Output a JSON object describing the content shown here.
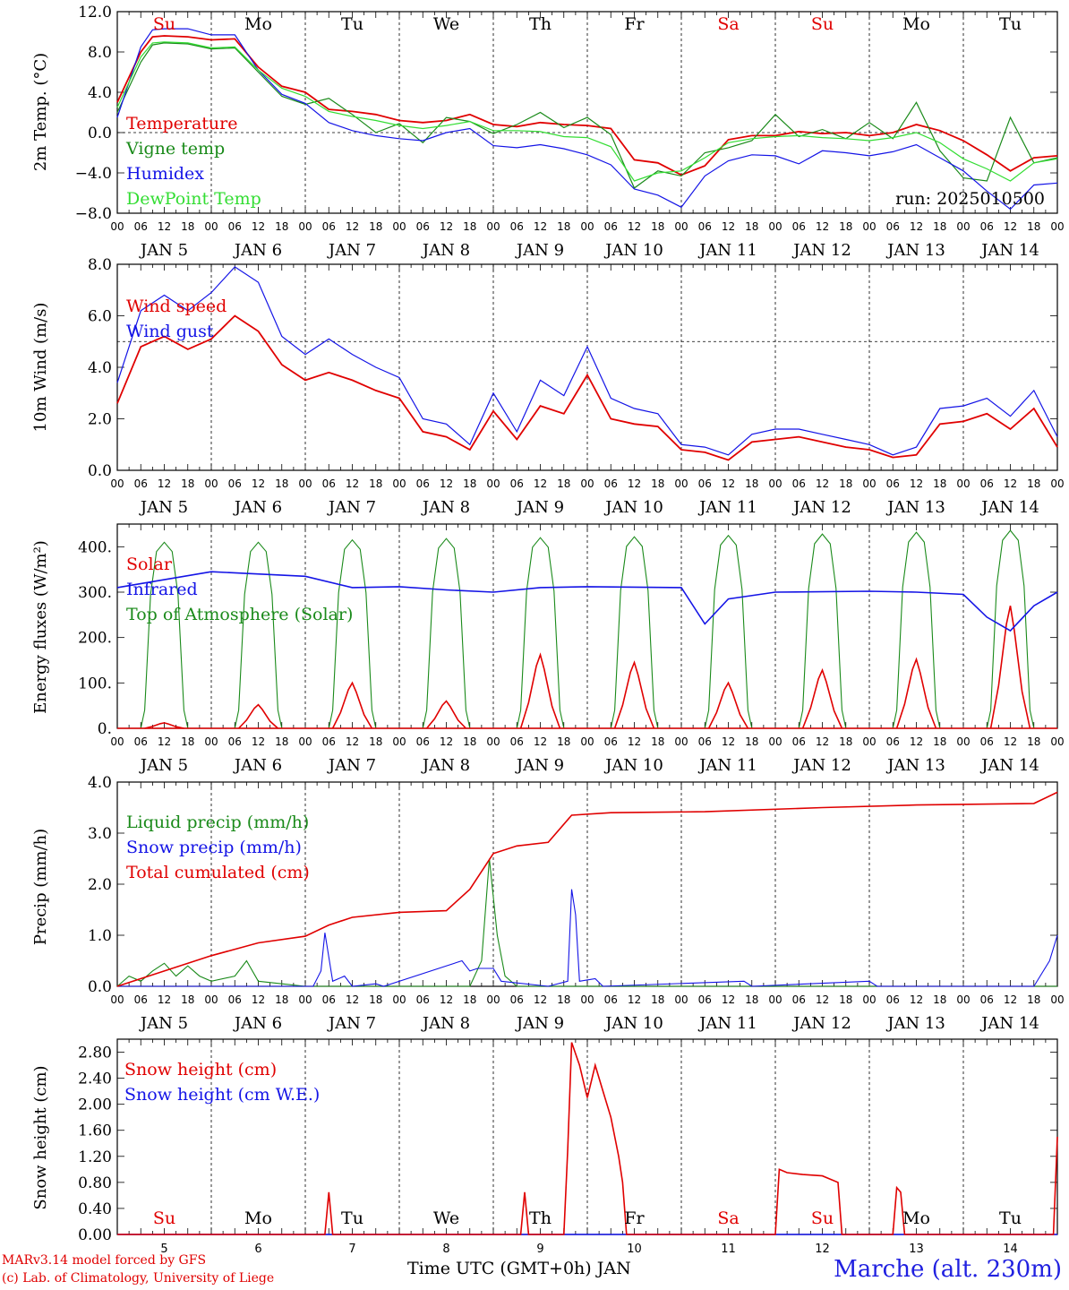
{
  "day_names": [
    "Su",
    "Mo",
    "Tu",
    "We",
    "Th",
    "Fr",
    "Sa",
    "Su",
    "Mo",
    "Tu"
  ],
  "weekend_color": "#e00000",
  "weekday_color": "#000000",
  "hour_ticks": [
    "00",
    "06",
    "12",
    "18"
  ],
  "final_hour_tick": "00",
  "date_labels": [
    "JAN  5",
    "JAN  6",
    "JAN  7",
    "JAN  8",
    "JAN  9",
    "JAN 10",
    "JAN 11",
    "JAN 12",
    "JAN 13",
    "JAN 14"
  ],
  "bottom_day_numbers": [
    "5",
    "6",
    "7",
    "8",
    "9",
    "10",
    "11",
    "12",
    "13",
    "14"
  ],
  "footer": {
    "credit_line1": "MARv3.14 model forced by GFS",
    "credit_line2": "(c) Lab. of Climatology, University of Liege",
    "x_axis_label": "Time UTC (GMT+0h) JAN",
    "station": "Marche (alt. 230m)"
  },
  "colors": {
    "red": "#e00000",
    "green": "#1a8a1a",
    "blue": "#1414e6",
    "lightgreen": "#33dd33"
  },
  "chart_data": [
    {
      "type": "line",
      "ylabel": "2m Temp. (°C)",
      "ylim": [
        -8,
        12
      ],
      "yticks": [
        "12.0",
        "8.0",
        "4.0",
        "0.0",
        "−4.0",
        "−8.0"
      ],
      "ytick_values": [
        12,
        8,
        4,
        0,
        -4,
        -8
      ],
      "ref_line": 0,
      "annotation": "run: 2025010500",
      "x_hours": [
        0,
        6,
        9,
        12,
        18,
        24,
        30,
        36,
        42,
        48,
        54,
        60,
        66,
        72,
        78,
        84,
        90,
        96,
        102,
        108,
        114,
        120,
        126,
        132,
        138,
        144,
        150,
        156,
        162,
        168,
        174,
        180,
        186,
        192,
        198,
        204,
        210,
        216,
        222,
        228,
        234,
        240
      ],
      "series": [
        {
          "name": "Temperature",
          "color": "red",
          "values": [
            3.0,
            8.0,
            9.5,
            9.6,
            9.5,
            9.2,
            9.3,
            6.5,
            4.6,
            4.0,
            2.3,
            2.1,
            1.8,
            1.2,
            1.0,
            1.2,
            1.8,
            0.8,
            0.6,
            1.0,
            0.8,
            0.7,
            0.4,
            -2.7,
            -3.0,
            -4.2,
            -3.3,
            -0.7,
            -0.3,
            -0.3,
            0.1,
            -0.1,
            0.0,
            -0.3,
            0.0,
            0.8,
            0.2,
            -0.8,
            -2.2,
            -3.8,
            -2.5,
            -2.3
          ]
        },
        {
          "name": "Vigne temp",
          "color": "green",
          "values": [
            2.0,
            7.0,
            8.7,
            8.9,
            8.8,
            8.3,
            8.4,
            6.0,
            3.6,
            2.8,
            3.4,
            1.8,
            0.0,
            0.9,
            -1.0,
            1.5,
            1.1,
            -0.1,
            0.8,
            2.0,
            0.5,
            1.5,
            -0.2,
            -5.5,
            -3.8,
            -4.3,
            -2.0,
            -1.5,
            -0.8,
            1.8,
            -0.4,
            0.3,
            -0.6,
            1.0,
            -0.6,
            3.0,
            -1.8,
            -4.5,
            -4.8,
            1.5,
            -3.0,
            -2.5
          ]
        },
        {
          "name": "Humidex",
          "color": "blue",
          "values": [
            1.5,
            8.5,
            10.2,
            10.3,
            10.3,
            9.7,
            9.7,
            6.2,
            3.8,
            2.9,
            1.0,
            0.2,
            -0.3,
            -0.6,
            -0.8,
            0.0,
            0.4,
            -1.3,
            -1.5,
            -1.2,
            -1.6,
            -2.2,
            -3.2,
            -5.6,
            -6.2,
            -7.4,
            -4.3,
            -2.8,
            -2.2,
            -2.3,
            -3.1,
            -1.8,
            -2.0,
            -2.3,
            -1.9,
            -1.2,
            -2.5,
            -3.8,
            -5.8,
            -7.6,
            -5.2,
            -5.0
          ]
        },
        {
          "name": "DewPoint Temp",
          "color": "lightgreen",
          "values": [
            2.5,
            7.5,
            8.9,
            9.0,
            8.9,
            8.4,
            8.5,
            6.2,
            4.4,
            3.6,
            2.1,
            1.6,
            1.2,
            0.7,
            0.4,
            0.7,
            1.1,
            0.2,
            0.2,
            0.1,
            -0.4,
            -0.5,
            -1.4,
            -4.8,
            -4.0,
            -3.8,
            -2.5,
            -1.0,
            -0.6,
            -0.4,
            -0.3,
            -0.5,
            -0.6,
            -0.8,
            -0.5,
            0.0,
            -1.0,
            -2.6,
            -3.6,
            -4.8,
            -3.0,
            -2.6
          ]
        }
      ],
      "legend_placement": "upper-left"
    },
    {
      "type": "line",
      "ylabel": "10m Wind (m/s)",
      "ylim": [
        0,
        8
      ],
      "yticks": [
        "8.0",
        "6.0",
        "4.0",
        "2.0",
        "0.0"
      ],
      "ytick_values": [
        8,
        6,
        4,
        2,
        0
      ],
      "ref_line": 5,
      "x_hours": [
        0,
        6,
        12,
        18,
        24,
        30,
        36,
        42,
        48,
        54,
        60,
        66,
        72,
        78,
        84,
        90,
        96,
        102,
        108,
        114,
        120,
        126,
        132,
        138,
        144,
        150,
        156,
        162,
        168,
        174,
        180,
        186,
        192,
        198,
        204,
        210,
        216,
        222,
        228,
        234,
        240
      ],
      "series": [
        {
          "name": "Wind speed",
          "color": "red",
          "values": [
            2.6,
            4.8,
            5.2,
            4.7,
            5.1,
            6.0,
            5.4,
            4.1,
            3.5,
            3.8,
            3.5,
            3.1,
            2.8,
            1.5,
            1.3,
            0.8,
            2.3,
            1.2,
            2.5,
            2.2,
            3.7,
            2.0,
            1.8,
            1.7,
            0.8,
            0.7,
            0.4,
            1.1,
            1.2,
            1.3,
            1.1,
            0.9,
            0.8,
            0.5,
            0.6,
            1.8,
            1.9,
            2.2,
            1.6,
            2.4,
            0.9
          ]
        },
        {
          "name": "Wind gust",
          "color": "blue",
          "values": [
            3.4,
            6.2,
            6.8,
            6.2,
            6.9,
            7.9,
            7.3,
            5.2,
            4.5,
            5.1,
            4.5,
            4.0,
            3.6,
            2.0,
            1.8,
            1.0,
            3.0,
            1.5,
            3.5,
            2.9,
            4.8,
            2.8,
            2.4,
            2.2,
            1.0,
            0.9,
            0.6,
            1.4,
            1.6,
            1.6,
            1.4,
            1.2,
            1.0,
            0.6,
            0.9,
            2.4,
            2.5,
            2.8,
            2.1,
            3.1,
            1.3
          ]
        }
      ],
      "legend_placement": "upper-left"
    },
    {
      "type": "line",
      "ylabel": "Energy fluxes (W/m²)",
      "ylim": [
        0,
        450
      ],
      "yticks": [
        "400.",
        "300.",
        "200.",
        "100.",
        "0."
      ],
      "ytick_values": [
        400,
        300,
        200,
        100,
        0
      ],
      "x_hours": "computed",
      "days": 10,
      "toa_peaks": [
        410,
        410,
        415,
        418,
        420,
        422,
        425,
        428,
        432,
        436
      ],
      "solar_peaks": [
        12,
        52,
        100,
        60,
        162,
        145,
        100,
        128,
        152,
        270
      ],
      "infrared_points": [
        [
          0,
          310
        ],
        [
          24,
          345
        ],
        [
          48,
          335
        ],
        [
          60,
          310
        ],
        [
          72,
          312
        ],
        [
          84,
          305
        ],
        [
          96,
          300
        ],
        [
          108,
          310
        ],
        [
          120,
          312
        ],
        [
          144,
          310
        ],
        [
          150,
          230
        ],
        [
          156,
          285
        ],
        [
          168,
          300
        ],
        [
          192,
          302
        ],
        [
          204,
          300
        ],
        [
          216,
          295
        ],
        [
          222,
          245
        ],
        [
          228,
          215
        ],
        [
          234,
          270
        ],
        [
          240,
          300
        ]
      ],
      "series": [
        {
          "name": "Solar",
          "color": "red"
        },
        {
          "name": "Infrared",
          "color": "blue"
        },
        {
          "name": "Top of Atmosphere (Solar)",
          "color": "green"
        }
      ],
      "legend_placement": "upper-left"
    },
    {
      "type": "line",
      "ylabel": "Precip (mm/h)",
      "ylim": [
        0,
        4
      ],
      "yticks": [
        "4.0",
        "3.0",
        "2.0",
        "1.0",
        "0.0"
      ],
      "ytick_values": [
        4,
        3,
        2,
        1,
        0
      ],
      "series": [
        {
          "name": "Liquid precip (mm/h)",
          "color": "green",
          "points": [
            [
              0,
              0
            ],
            [
              3,
              0.2
            ],
            [
              6,
              0.1
            ],
            [
              9,
              0.3
            ],
            [
              12,
              0.45
            ],
            [
              15,
              0.2
            ],
            [
              18,
              0.4
            ],
            [
              21,
              0.2
            ],
            [
              24,
              0.1
            ],
            [
              30,
              0.2
            ],
            [
              33,
              0.5
            ],
            [
              36,
              0.1
            ],
            [
              42,
              0.05
            ],
            [
              48,
              0
            ],
            [
              54,
              0
            ],
            [
              60,
              0
            ],
            [
              78,
              0
            ],
            [
              90,
              0
            ],
            [
              93,
              0.5
            ],
            [
              95,
              2.5
            ],
            [
              97,
              1.0
            ],
            [
              99,
              0.2
            ],
            [
              102,
              0
            ],
            [
              240,
              0
            ]
          ]
        },
        {
          "name": "Snow precip (mm/h)",
          "color": "blue",
          "points": [
            [
              0,
              0
            ],
            [
              50,
              0
            ],
            [
              52,
              0.3
            ],
            [
              53,
              1.05
            ],
            [
              55,
              0.1
            ],
            [
              58,
              0.2
            ],
            [
              60,
              0
            ],
            [
              66,
              0.05
            ],
            [
              68,
              0
            ],
            [
              88,
              0.5
            ],
            [
              90,
              0.3
            ],
            [
              92,
              0.35
            ],
            [
              96,
              0.35
            ],
            [
              98,
              0.1
            ],
            [
              110,
              0
            ],
            [
              115,
              0.1
            ],
            [
              116,
              1.9
            ],
            [
              117,
              1.4
            ],
            [
              118,
              0.1
            ],
            [
              122,
              0.15
            ],
            [
              124,
              0
            ],
            [
              160,
              0.1
            ],
            [
              162,
              0
            ],
            [
              192,
              0.1
            ],
            [
              194,
              0
            ],
            [
              234,
              0
            ],
            [
              238,
              0.5
            ],
            [
              240,
              1.0
            ]
          ]
        },
        {
          "name": "Total cumulated (cm)",
          "color": "red",
          "points": [
            [
              0,
              0
            ],
            [
              12,
              0.3
            ],
            [
              24,
              0.6
            ],
            [
              36,
              0.85
            ],
            [
              48,
              0.98
            ],
            [
              54,
              1.2
            ],
            [
              60,
              1.35
            ],
            [
              72,
              1.45
            ],
            [
              84,
              1.48
            ],
            [
              90,
              1.9
            ],
            [
              96,
              2.6
            ],
            [
              102,
              2.75
            ],
            [
              110,
              2.82
            ],
            [
              116,
              3.35
            ],
            [
              126,
              3.4
            ],
            [
              150,
              3.42
            ],
            [
              180,
              3.5
            ],
            [
              204,
              3.55
            ],
            [
              234,
              3.58
            ],
            [
              240,
              3.8
            ]
          ]
        }
      ],
      "legend_placement": "upper-left"
    },
    {
      "type": "line",
      "ylabel": "Snow height (cm)",
      "ylim": [
        0,
        3.0
      ],
      "yticks": [
        "2.80",
        "2.40",
        "2.00",
        "1.60",
        "1.20",
        "0.80",
        "0.40",
        "0.00"
      ],
      "ytick_values": [
        2.8,
        2.4,
        2.0,
        1.6,
        1.2,
        0.8,
        0.4,
        0.0
      ],
      "series": [
        {
          "name": "Snow height (cm)",
          "color": "red",
          "points": [
            [
              0,
              0
            ],
            [
              53,
              0
            ],
            [
              54,
              0.65
            ],
            [
              55,
              0
            ],
            [
              103,
              0
            ],
            [
              104,
              0.65
            ],
            [
              105,
              0
            ],
            [
              114,
              0
            ],
            [
              115,
              1.3
            ],
            [
              116,
              2.95
            ],
            [
              118,
              2.6
            ],
            [
              120,
              2.1
            ],
            [
              122,
              2.6
            ],
            [
              124,
              2.2
            ],
            [
              126,
              1.8
            ],
            [
              128,
              1.2
            ],
            [
              129,
              0.8
            ],
            [
              130,
              0
            ],
            [
              168,
              0
            ],
            [
              169,
              1.0
            ],
            [
              171,
              0.95
            ],
            [
              175,
              0.92
            ],
            [
              180,
              0.9
            ],
            [
              184,
              0.8
            ],
            [
              185,
              0
            ],
            [
              198,
              0
            ],
            [
              199,
              0.72
            ],
            [
              200,
              0.65
            ],
            [
              201,
              0
            ],
            [
              239,
              0
            ],
            [
              240,
              1.5
            ]
          ]
        },
        {
          "name": "Snow height (cm W.E.)",
          "color": "blue",
          "points": [
            [
              0,
              0
            ],
            [
              240,
              0
            ]
          ]
        }
      ],
      "legend_placement": "upper-left"
    }
  ]
}
